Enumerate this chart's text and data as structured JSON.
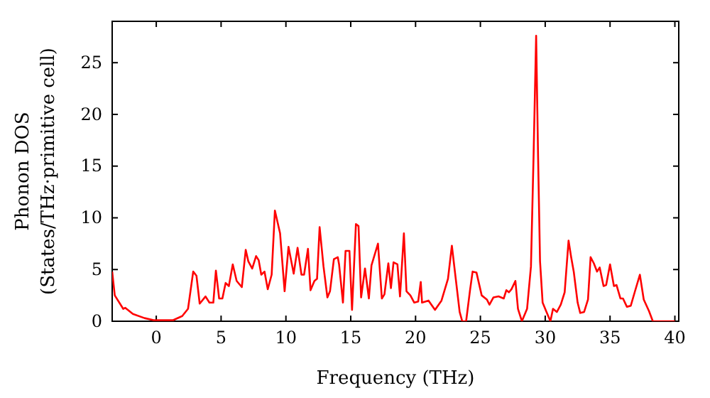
{
  "chart_data": {
    "type": "line",
    "xlabel": "Frequency (THz)",
    "ylabel": "Phonon DOS\n(States/THz·primitive cell)",
    "xlim": [
      -3.4,
      40.3
    ],
    "ylim": [
      0,
      29
    ],
    "xticks": [
      0,
      5,
      10,
      15,
      20,
      25,
      30,
      35,
      40
    ],
    "yticks": [
      0,
      5,
      10,
      15,
      20,
      25
    ],
    "grid": false,
    "series": [
      {
        "color": "#ff0000",
        "x": [
          -3.4,
          -3.2,
          -2.55,
          -2.4,
          -1.8,
          -0.9,
          -0.2,
          1.3,
          2.0,
          2.45,
          2.85,
          3.1,
          3.35,
          3.8,
          4.1,
          4.4,
          4.6,
          4.85,
          5.1,
          5.35,
          5.6,
          5.9,
          6.2,
          6.6,
          6.9,
          7.1,
          7.4,
          7.7,
          7.9,
          8.1,
          8.35,
          8.6,
          8.9,
          9.15,
          9.55,
          9.9,
          10.2,
          10.6,
          10.9,
          11.2,
          11.4,
          11.7,
          11.9,
          12.2,
          12.4,
          12.6,
          12.9,
          13.2,
          13.4,
          13.7,
          14.0,
          14.1,
          14.4,
          14.6,
          14.9,
          15.1,
          15.4,
          15.6,
          15.8,
          16.1,
          16.4,
          16.6,
          17.1,
          17.4,
          17.6,
          17.9,
          18.1,
          18.3,
          18.6,
          18.8,
          19.1,
          19.3,
          19.6,
          19.9,
          20.2,
          20.4,
          20.5,
          21.0,
          21.5,
          22.0,
          22.5,
          22.8,
          23.1,
          23.4,
          23.6,
          23.9,
          24.2,
          24.4,
          24.7,
          25.1,
          25.5,
          25.7,
          26.0,
          26.4,
          26.8,
          27.0,
          27.2,
          27.4,
          27.7,
          27.9,
          28.2,
          28.6,
          28.9,
          29.1,
          29.3,
          29.45,
          29.6,
          29.8,
          30.1,
          30.4,
          30.6,
          30.9,
          31.2,
          31.5,
          31.8,
          32.0,
          32.2,
          32.5,
          32.7,
          33.0,
          33.3,
          33.5,
          33.75,
          34.0,
          34.2,
          34.5,
          34.7,
          35.0,
          35.3,
          35.5,
          35.8,
          36.0,
          36.3,
          36.6,
          36.9,
          37.3,
          37.6,
          38.0,
          38.3,
          40.0
        ],
        "values": [
          4.8,
          2.5,
          1.2,
          1.3,
          0.7,
          0.3,
          0.1,
          0.1,
          0.5,
          1.2,
          4.8,
          4.4,
          1.7,
          2.4,
          1.8,
          1.8,
          4.9,
          2.2,
          2.2,
          3.7,
          3.4,
          5.5,
          3.9,
          3.3,
          6.9,
          5.8,
          5.1,
          6.3,
          5.9,
          4.5,
          4.8,
          3.1,
          4.5,
          10.7,
          8.5,
          2.9,
          7.2,
          4.6,
          7.1,
          4.5,
          4.5,
          7.0,
          3.0,
          3.9,
          4.1,
          9.1,
          5.3,
          2.3,
          2.9,
          6.0,
          6.2,
          5.5,
          1.8,
          6.8,
          6.8,
          1.1,
          9.4,
          9.2,
          2.3,
          5.1,
          2.2,
          5.4,
          7.5,
          2.2,
          2.6,
          5.6,
          3.2,
          5.7,
          5.5,
          2.4,
          8.5,
          2.9,
          2.5,
          1.8,
          1.9,
          3.8,
          1.8,
          2.0,
          1.1,
          2.0,
          4.1,
          7.3,
          4.1,
          0.9,
          0,
          0,
          3.0,
          4.8,
          4.7,
          2.5,
          2.1,
          1.6,
          2.3,
          2.4,
          2.2,
          3.0,
          2.8,
          3.1,
          3.9,
          1.2,
          0,
          1.2,
          5.3,
          15.9,
          27.6,
          15.9,
          5.8,
          1.8,
          0.9,
          0,
          1.2,
          0.9,
          1.6,
          2.8,
          7.8,
          6.2,
          4.8,
          1.8,
          0.8,
          0.9,
          2.1,
          6.2,
          5.6,
          4.8,
          5.2,
          3.4,
          3.5,
          5.5,
          3.4,
          3.5,
          2.2,
          2.2,
          1.4,
          1.5,
          2.8,
          4.5,
          2.1,
          1.0,
          0,
          0
        ]
      }
    ]
  }
}
